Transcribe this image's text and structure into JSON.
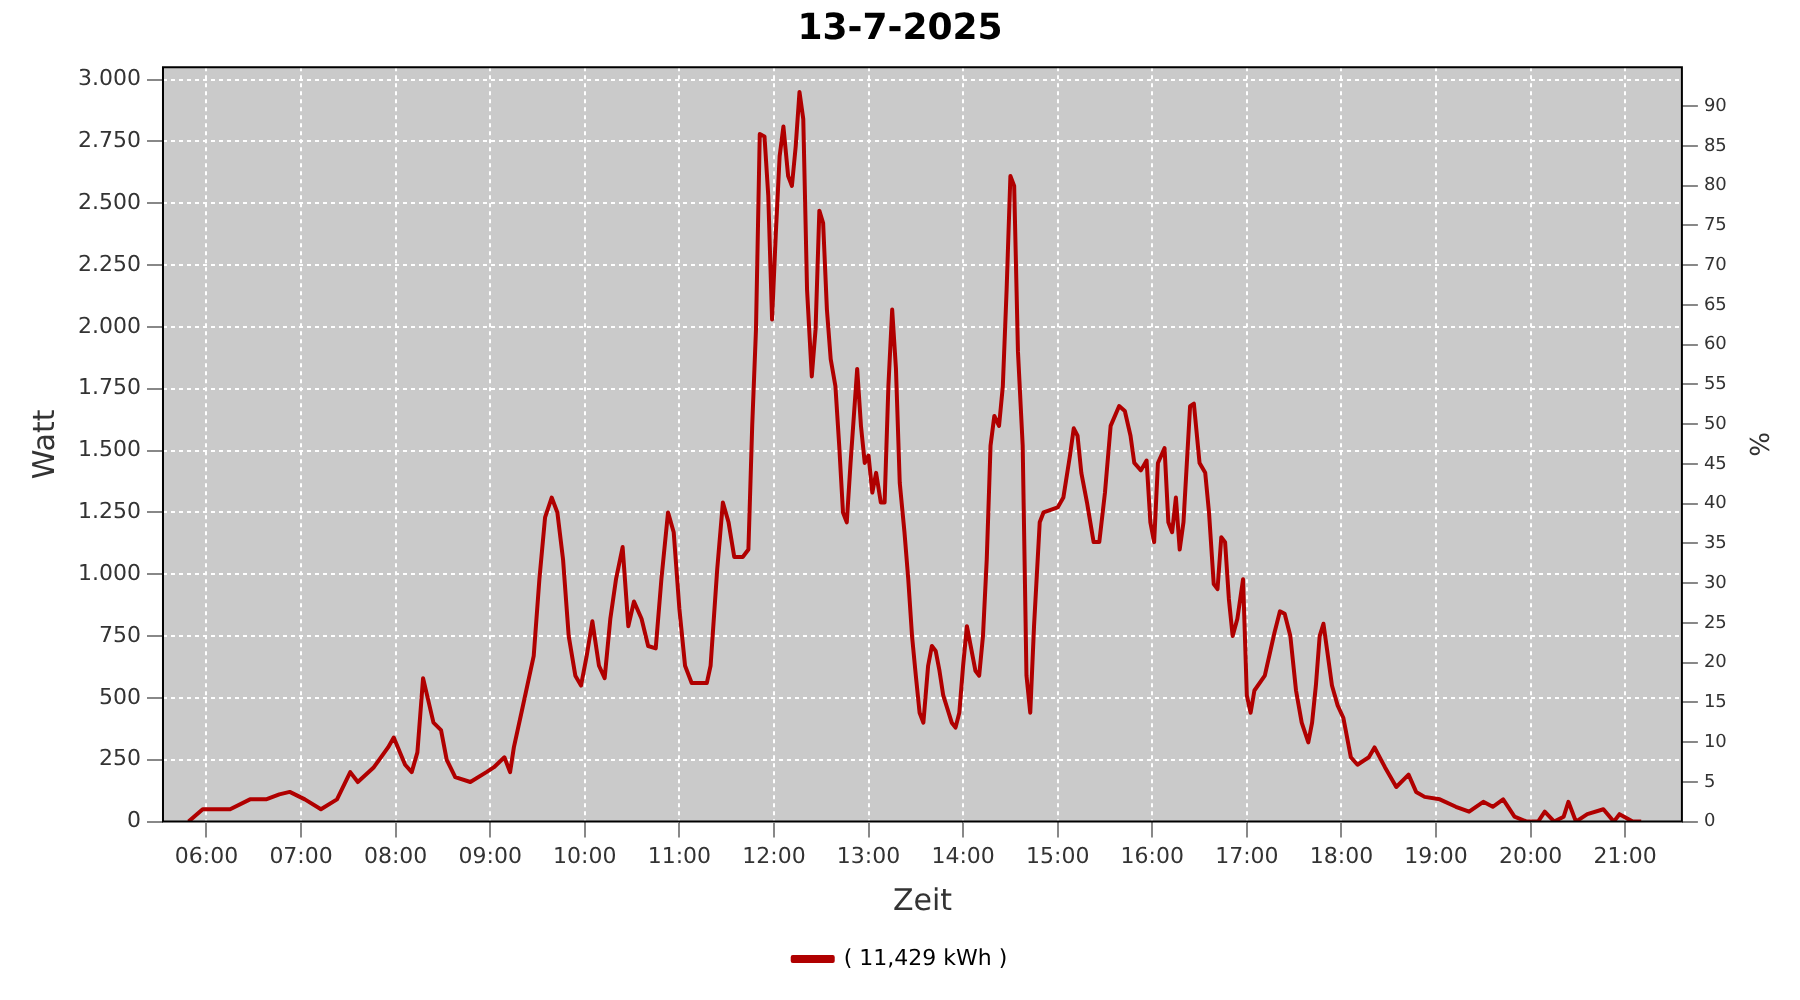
{
  "chart_data": {
    "type": "line",
    "title": "13-7-2025",
    "xlabel": "Zeit",
    "ylabel": "Watt",
    "y2label": "%",
    "x": [
      5.81,
      5.96,
      6.1,
      6.25,
      6.46,
      6.63,
      6.77,
      6.88,
      7.04,
      7.21,
      7.38,
      7.52,
      7.6,
      7.77,
      7.92,
      7.98,
      8.1,
      8.17,
      8.23,
      8.29,
      8.4,
      8.48,
      8.54,
      8.63,
      8.79,
      8.96,
      9.04,
      9.15,
      9.21,
      9.25,
      9.33,
      9.46,
      9.52,
      9.58,
      9.65,
      9.71,
      9.77,
      9.83,
      9.9,
      9.96,
      10.02,
      10.08,
      10.15,
      10.21,
      10.27,
      10.33,
      10.4,
      10.46,
      10.52,
      10.6,
      10.67,
      10.75,
      10.81,
      10.88,
      10.94,
      11.0,
      11.06,
      11.13,
      11.29,
      11.33,
      11.4,
      11.46,
      11.52,
      11.58,
      11.67,
      11.73,
      11.77,
      11.81,
      11.85,
      11.9,
      11.94,
      11.98,
      12.02,
      12.06,
      12.1,
      12.15,
      12.19,
      12.23,
      12.27,
      12.31,
      12.35,
      12.4,
      12.44,
      12.48,
      12.52,
      12.56,
      12.6,
      12.65,
      12.69,
      12.73,
      12.77,
      12.81,
      12.88,
      12.92,
      12.96,
      13.0,
      13.04,
      13.08,
      13.13,
      13.17,
      13.21,
      13.25,
      13.29,
      13.33,
      13.38,
      13.42,
      13.46,
      13.5,
      13.54,
      13.58,
      13.63,
      13.67,
      13.71,
      13.75,
      13.79,
      13.88,
      13.92,
      13.96,
      14.0,
      14.04,
      14.08,
      14.13,
      14.17,
      14.21,
      14.25,
      14.29,
      14.33,
      14.38,
      14.42,
      14.46,
      14.5,
      14.54,
      14.58,
      14.63,
      14.67,
      14.71,
      14.75,
      14.81,
      14.85,
      15.0,
      15.06,
      15.13,
      15.17,
      15.21,
      15.25,
      15.31,
      15.38,
      15.44,
      15.5,
      15.56,
      15.65,
      15.71,
      15.77,
      15.81,
      15.88,
      15.94,
      15.98,
      16.02,
      16.06,
      16.13,
      16.17,
      16.21,
      16.25,
      16.29,
      16.33,
      16.4,
      16.44,
      16.5,
      16.56,
      16.6,
      16.65,
      16.69,
      16.73,
      16.77,
      16.81,
      16.85,
      16.9,
      16.96,
      17.0,
      17.04,
      17.08,
      17.19,
      17.29,
      17.35,
      17.4,
      17.46,
      17.52,
      17.58,
      17.65,
      17.69,
      17.73,
      17.77,
      17.81,
      17.85,
      17.9,
      17.96,
      18.02,
      18.1,
      18.17,
      18.29,
      18.35,
      18.46,
      18.58,
      18.71,
      18.79,
      18.88,
      19.04,
      19.21,
      19.35,
      19.5,
      19.6,
      19.71,
      19.83,
      19.96,
      20.08,
      20.15,
      20.25,
      20.35,
      20.4,
      20.48,
      20.6,
      20.77,
      20.88,
      20.94,
      21.08,
      21.17
    ],
    "series": [
      {
        "name": "( 11,429 kWh )",
        "color": "#b00000",
        "values": [
          0,
          50,
          50,
          50,
          90,
          90,
          110,
          120,
          90,
          50,
          90,
          200,
          160,
          220,
          300,
          340,
          230,
          200,
          280,
          580,
          400,
          370,
          250,
          180,
          160,
          200,
          220,
          260,
          200,
          300,
          440,
          670,
          980,
          1230,
          1310,
          1250,
          1060,
          750,
          590,
          550,
          670,
          810,
          630,
          580,
          820,
          980,
          1110,
          790,
          890,
          820,
          710,
          700,
          980,
          1250,
          1170,
          860,
          630,
          560,
          560,
          630,
          1020,
          1290,
          1210,
          1070,
          1070,
          1100,
          1600,
          1990,
          2780,
          2770,
          2530,
          2030,
          2380,
          2690,
          2810,
          2610,
          2570,
          2730,
          2950,
          2840,
          2150,
          1800,
          1990,
          2470,
          2420,
          2070,
          1870,
          1760,
          1520,
          1250,
          1210,
          1450,
          1830,
          1600,
          1450,
          1480,
          1330,
          1410,
          1290,
          1290,
          1760,
          2070,
          1830,
          1370,
          1170,
          980,
          750,
          590,
          440,
          400,
          630,
          710,
          690,
          610,
          510,
          400,
          380,
          440,
          630,
          790,
          710,
          610,
          590,
          750,
          1060,
          1520,
          1640,
          1600,
          1760,
          2150,
          2610,
          2570,
          1900,
          1520,
          590,
          440,
          790,
          1210,
          1250,
          1270,
          1310,
          1480,
          1590,
          1560,
          1410,
          1290,
          1130,
          1130,
          1330,
          1600,
          1680,
          1660,
          1560,
          1450,
          1420,
          1460,
          1210,
          1130,
          1450,
          1510,
          1210,
          1170,
          1310,
          1100,
          1210,
          1680,
          1690,
          1450,
          1410,
          1250,
          960,
          940,
          1150,
          1130,
          900,
          750,
          820,
          980,
          510,
          440,
          530,
          590,
          760,
          850,
          840,
          750,
          530,
          400,
          320,
          400,
          550,
          750,
          800,
          690,
          550,
          470,
          420,
          260,
          230,
          260,
          300,
          220,
          140,
          190,
          120,
          100,
          90,
          60,
          40,
          80,
          60,
          90,
          20,
          0,
          0,
          40,
          0,
          20,
          80,
          0,
          30,
          50,
          0,
          30,
          0,
          0
        ]
      }
    ],
    "xlim": [
      5.54,
      21.6
    ],
    "xticks": [
      {
        "value": 6,
        "label": "06:00"
      },
      {
        "value": 7,
        "label": "07:00"
      },
      {
        "value": 8,
        "label": "08:00"
      },
      {
        "value": 9,
        "label": "09:00"
      },
      {
        "value": 10,
        "label": "10:00"
      },
      {
        "value": 11,
        "label": "11:00"
      },
      {
        "value": 12,
        "label": "12:00"
      },
      {
        "value": 13,
        "label": "13:00"
      },
      {
        "value": 14,
        "label": "14:00"
      },
      {
        "value": 15,
        "label": "15:00"
      },
      {
        "value": 16,
        "label": "16:00"
      },
      {
        "value": 17,
        "label": "17:00"
      },
      {
        "value": 18,
        "label": "18:00"
      },
      {
        "value": 19,
        "label": "19:00"
      },
      {
        "value": 20,
        "label": "20:00"
      },
      {
        "value": 21,
        "label": "21:00"
      }
    ],
    "ylim": [
      0,
      3050
    ],
    "yticks": [
      0,
      {
        "value": 250,
        "label": "250"
      },
      {
        "value": 500,
        "label": "500"
      },
      {
        "value": 750,
        "label": "750"
      },
      {
        "value": 1000,
        "label": "1.000"
      },
      {
        "value": 1250,
        "label": "1.250"
      },
      {
        "value": 1500,
        "label": "1.500"
      },
      {
        "value": 1750,
        "label": "1.750"
      },
      {
        "value": 2000,
        "label": "2.000"
      },
      {
        "value": 2250,
        "label": "2.250"
      },
      {
        "value": 2500,
        "label": "2.500"
      },
      {
        "value": 2750,
        "label": "2.750"
      },
      {
        "value": 3000,
        "label": "3.000"
      }
    ],
    "y2lim": [
      0,
      94.9
    ],
    "y2ticks": [
      0,
      5,
      10,
      15,
      20,
      25,
      30,
      35,
      40,
      45,
      50,
      55,
      60,
      65,
      70,
      75,
      80,
      85,
      90
    ],
    "grid": true,
    "legend": "bottom",
    "marker": "none",
    "line_style": "solid"
  }
}
